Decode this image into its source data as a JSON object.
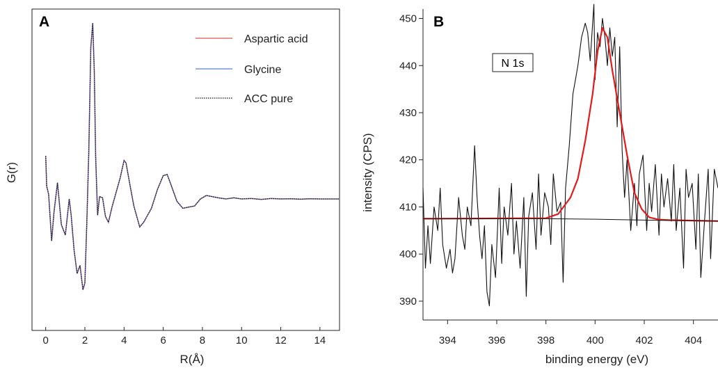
{
  "chart_data": [
    {
      "panel": "A",
      "type": "line",
      "xlabel": "R(Å)",
      "ylabel": "G(r)",
      "xlim": [
        -0.7,
        15
      ],
      "xticks": [
        "0",
        "2",
        "4",
        "6",
        "8",
        "10",
        "12",
        "14"
      ],
      "grid": false,
      "legend_position": "top-right",
      "series": [
        {
          "name": "Aspartic acid",
          "color": "#d9534f",
          "style": "solid"
        },
        {
          "name": "Glycine",
          "color": "#5b7fd6",
          "style": "solid"
        },
        {
          "name": "ACC pure",
          "color": "#111111",
          "style": "dotted"
        }
      ],
      "x": [
        0.0,
        0.05,
        0.15,
        0.3,
        0.42,
        0.6,
        0.8,
        1.0,
        1.2,
        1.3,
        1.45,
        1.6,
        1.75,
        1.9,
        2.0,
        2.1,
        2.2,
        2.3,
        2.4,
        2.48,
        2.55,
        2.65,
        2.75,
        2.9,
        3.05,
        3.2,
        3.4,
        3.6,
        3.8,
        4.0,
        4.1,
        4.3,
        4.5,
        4.8,
        5.0,
        5.2,
        5.4,
        5.7,
        6.0,
        6.2,
        6.4,
        6.7,
        7.0,
        7.3,
        7.6,
        7.9,
        8.2,
        8.5,
        8.8,
        9.2,
        9.6,
        10.0,
        10.5,
        11.0,
        11.5,
        12.0,
        12.5,
        13.0,
        13.5,
        14.0,
        14.5,
        15.0
      ],
      "y": [
        1.85,
        0.55,
        0.2,
        -1.8,
        -0.6,
        0.7,
        -1.1,
        -1.55,
        0.0,
        -0.7,
        -2.2,
        -3.2,
        -2.85,
        -3.9,
        -3.6,
        -1.0,
        2.0,
        6.5,
        7.55,
        5.5,
        1.8,
        -0.7,
        0.1,
        0.05,
        -0.75,
        -1.0,
        -0.3,
        0.3,
        0.9,
        1.65,
        1.55,
        0.6,
        -0.3,
        -1.2,
        -1.0,
        -0.7,
        -0.4,
        0.4,
        1.0,
        1.05,
        0.6,
        -0.1,
        -0.4,
        -0.35,
        -0.3,
        0.0,
        0.15,
        0.1,
        0.05,
        0.0,
        0.05,
        0.0,
        0.02,
        -0.02,
        0.02,
        0.0,
        0.01,
        -0.01,
        0.01,
        0.0,
        0.0,
        0.0
      ]
    },
    {
      "panel": "B",
      "type": "line",
      "xlabel": "binding energy (eV)",
      "ylabel": "intensity (CPS)",
      "annotation": "N 1s",
      "xlim": [
        393.0,
        405.0
      ],
      "ylim": [
        386,
        452
      ],
      "xticks": [
        "394",
        "396",
        "398",
        "400",
        "402",
        "404"
      ],
      "yticks": [
        "390",
        "400",
        "410",
        "420",
        "430",
        "440",
        "450"
      ],
      "grid": false,
      "series": [
        {
          "name": "",
          "color": "#111111",
          "role": "raw spectrum",
          "x": [
            393.0,
            393.1,
            393.2,
            393.3,
            393.45,
            393.6,
            393.7,
            393.8,
            393.95,
            394.1,
            394.2,
            394.3,
            394.45,
            394.6,
            394.7,
            394.8,
            394.95,
            395.1,
            395.2,
            395.3,
            395.4,
            395.5,
            395.6,
            395.7,
            395.8,
            395.95,
            396.1,
            396.2,
            396.3,
            396.45,
            396.6,
            396.7,
            396.8,
            396.95,
            397.1,
            397.2,
            397.3,
            397.45,
            397.6,
            397.7,
            397.8,
            397.95,
            398.1,
            398.2,
            398.3,
            398.45,
            398.6,
            398.7,
            398.8,
            398.95,
            399.1,
            399.2,
            399.3,
            399.45,
            399.6,
            399.7,
            399.8,
            399.95,
            400.0,
            400.1,
            400.2,
            400.3,
            400.4,
            400.5,
            400.6,
            400.7,
            400.8,
            400.9,
            401.0,
            401.1,
            401.2,
            401.3,
            401.45,
            401.6,
            401.7,
            401.8,
            401.95,
            402.1,
            402.2,
            402.3,
            402.45,
            402.6,
            402.7,
            402.8,
            402.95,
            403.1,
            403.2,
            403.3,
            403.45,
            403.6,
            403.7,
            403.8,
            403.95,
            404.1,
            404.2,
            404.3,
            404.45,
            404.6,
            404.7,
            404.85,
            405.0
          ],
          "y": [
            414,
            397,
            406,
            398,
            410,
            405,
            414,
            402,
            397,
            401,
            396,
            399,
            412,
            404,
            401,
            410,
            406,
            423,
            412,
            404,
            399,
            406,
            392,
            389,
            402,
            395,
            414,
            398,
            410,
            404,
            415,
            400,
            407,
            397,
            412,
            391,
            408,
            413,
            401,
            417,
            404,
            413,
            410,
            402,
            417,
            409,
            411,
            394,
            414,
            423,
            434,
            437,
            440,
            446,
            449,
            447,
            441,
            453,
            437,
            447,
            444,
            450,
            446,
            440,
            448,
            442,
            446,
            427,
            444,
            422,
            412,
            420,
            405,
            415,
            406,
            417,
            421,
            405,
            415,
            409,
            419,
            404,
            417,
            410,
            416,
            407,
            419,
            405,
            414,
            397,
            418,
            412,
            415,
            401,
            417,
            395,
            407,
            418,
            399,
            418,
            414
          ]
        },
        {
          "name": "",
          "color": "#e31a1c",
          "role": "fit",
          "x": [
            393.0,
            398.0,
            398.5,
            399.0,
            399.3,
            399.6,
            399.9,
            400.1,
            400.3,
            400.5,
            400.7,
            401.0,
            401.3,
            401.6,
            401.9,
            402.2,
            402.6,
            403.0,
            405.0
          ],
          "y": [
            407.5,
            407.6,
            408.5,
            412,
            416,
            424,
            434,
            443,
            448,
            446,
            439,
            430,
            421,
            413,
            409.5,
            407.8,
            407.3,
            407.2,
            407.0
          ]
        },
        {
          "name": "",
          "color": "#111111",
          "role": "background",
          "x": [
            393.0,
            398.0,
            400.0,
            402.0,
            405.0
          ],
          "y": [
            407.5,
            407.5,
            407.4,
            407.2,
            407.0
          ]
        }
      ]
    }
  ]
}
